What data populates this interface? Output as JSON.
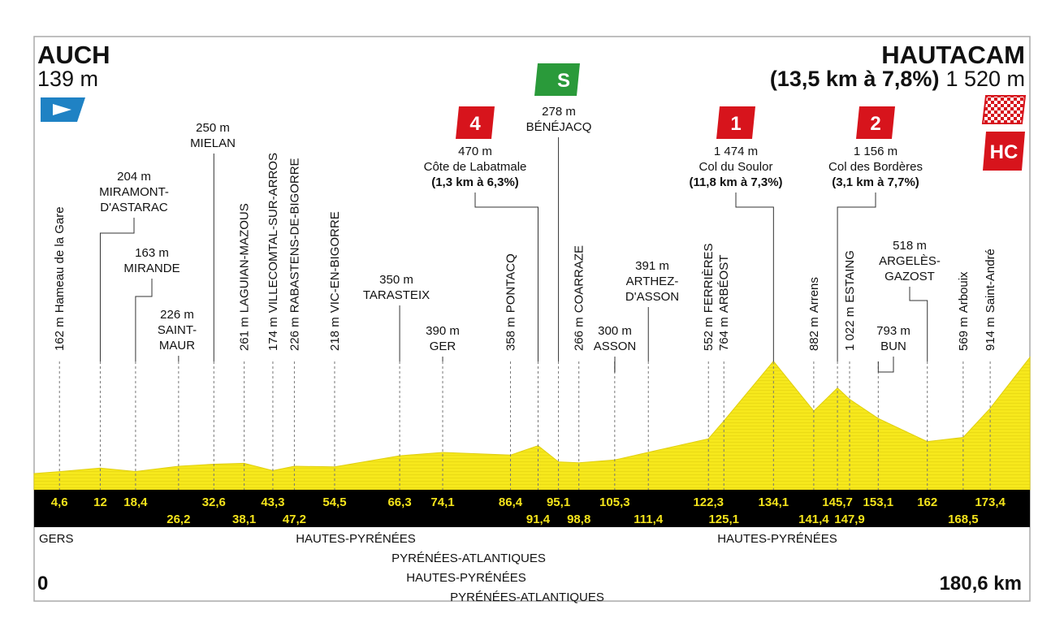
{
  "start": {
    "name": "AUCH",
    "altitude": {
      "value": 139,
      "label": "139 m"
    },
    "km": 0
  },
  "finish": {
    "name": "HAUTACAM",
    "climb": "(13,5 km à 7,8%)",
    "altitude": {
      "value": 1520,
      "label": "1 520 m"
    },
    "km": {
      "value": 180.6,
      "label": "180,6 km"
    },
    "category": "HC"
  },
  "points": [
    {
      "km": {
        "value": 4.6,
        "label": "4,6"
      },
      "altitude": {
        "value": 162,
        "label": "162 m"
      },
      "name": [
        "Hameau de la Gare"
      ]
    },
    {
      "km": {
        "value": 12,
        "label": "12"
      },
      "altitude": {
        "value": 204,
        "label": "204 m"
      },
      "name": [
        "MIRAMONT-",
        "D'ASTARAC"
      ]
    },
    {
      "km": {
        "value": 18.4,
        "label": "18,4"
      },
      "altitude": {
        "value": 163,
        "label": "163 m"
      },
      "name": [
        "MIRANDE"
      ]
    },
    {
      "km": {
        "value": 26.2,
        "label": "26,2"
      },
      "altitude": {
        "value": 226,
        "label": "226 m"
      },
      "name": [
        "SAINT-",
        "MAUR"
      ]
    },
    {
      "km": {
        "value": 32.6,
        "label": "32,6"
      },
      "altitude": {
        "value": 250,
        "label": "250 m"
      },
      "name": [
        "MIELAN"
      ]
    },
    {
      "km": {
        "value": 38.1,
        "label": "38,1"
      },
      "altitude": {
        "value": 261,
        "label": "261 m"
      },
      "name": [
        "LAGUIAN-MAZOUS"
      ]
    },
    {
      "km": {
        "value": 43.3,
        "label": "43,3"
      },
      "altitude": {
        "value": 174,
        "label": "174 m"
      },
      "name": [
        "VILLECOMTAL-SUR-ARROS"
      ]
    },
    {
      "km": {
        "value": 47.2,
        "label": "47,2"
      },
      "altitude": {
        "value": 226,
        "label": "226 m"
      },
      "name": [
        "RABASTENS-DE-BIGORRE"
      ]
    },
    {
      "km": {
        "value": 54.5,
        "label": "54,5"
      },
      "altitude": {
        "value": 218,
        "label": "218 m"
      },
      "name": [
        "VIC-EN-BIGORRE"
      ]
    },
    {
      "km": {
        "value": 66.3,
        "label": "66,3"
      },
      "altitude": {
        "value": 350,
        "label": "350 m"
      },
      "name": [
        "TARASTEIX"
      ]
    },
    {
      "km": {
        "value": 74.1,
        "label": "74,1"
      },
      "altitude": {
        "value": 390,
        "label": "390 m"
      },
      "name": [
        "GER"
      ]
    },
    {
      "km": {
        "value": 86.4,
        "label": "86,4"
      },
      "altitude": {
        "value": 358,
        "label": "358 m"
      },
      "name": [
        "PONTACQ"
      ]
    },
    {
      "km": {
        "value": 91.4,
        "label": "91,4"
      },
      "altitude": {
        "value": 470,
        "label": "470 m"
      },
      "name": [
        "Côte de Labatmale"
      ],
      "climb": "(1,3 km à 6,3%)",
      "category": "4"
    },
    {
      "km": {
        "value": 95.1,
        "label": "95,1"
      },
      "altitude": {
        "value": 278,
        "label": "278 m"
      },
      "name": [
        "BÉNÉJACQ"
      ],
      "sprint": "S"
    },
    {
      "km": {
        "value": 98.8,
        "label": "98,8"
      },
      "altitude": {
        "value": 266,
        "label": "266 m"
      },
      "name": [
        "COARRAZE"
      ]
    },
    {
      "km": {
        "value": 105.3,
        "label": "105,3"
      },
      "altitude": {
        "value": 300,
        "label": "300 m"
      },
      "name": [
        "ASSON"
      ]
    },
    {
      "km": {
        "value": 111.4,
        "label": "111,4"
      },
      "altitude": {
        "value": 391,
        "label": "391 m"
      },
      "name": [
        "ARTHEZ-",
        "D'ASSON"
      ]
    },
    {
      "km": {
        "value": 122.3,
        "label": "122,3"
      },
      "altitude": {
        "value": 552,
        "label": "552 m"
      },
      "name": [
        "FERRIÈRES"
      ]
    },
    {
      "km": {
        "value": 125.1,
        "label": "125,1"
      },
      "altitude": {
        "value": 764,
        "label": "764 m"
      },
      "name": [
        "ARBÉOST"
      ]
    },
    {
      "km": {
        "value": 134.1,
        "label": "134,1"
      },
      "altitude": {
        "value": 1474,
        "label": "1 474 m"
      },
      "name": [
        "Col du Soulor"
      ],
      "climb": "(11,8 km à 7,3%)",
      "category": "1"
    },
    {
      "km": {
        "value": 141.4,
        "label": "141,4"
      },
      "altitude": {
        "value": 882,
        "label": "882 m"
      },
      "name": [
        "Arrens"
      ]
    },
    {
      "km": {
        "value": 145.7,
        "label": "145,7"
      },
      "altitude": {
        "value": 1156,
        "label": "1 156 m"
      },
      "name": [
        "Col des Bordères"
      ],
      "climb": "(3,1 km à 7,7%)",
      "category": "2"
    },
    {
      "km": {
        "value": 147.9,
        "label": "147,9"
      },
      "altitude": {
        "value": 1022,
        "label": "1 022 m"
      },
      "name": [
        "ESTAING"
      ]
    },
    {
      "km": {
        "value": 153.1,
        "label": "153,1"
      },
      "altitude": {
        "value": 793,
        "label": "793 m"
      },
      "name": [
        "BUN"
      ]
    },
    {
      "km": {
        "value": 162,
        "label": "162"
      },
      "altitude": {
        "value": 518,
        "label": "518 m"
      },
      "name": [
        "ARGELÈS-",
        "GAZOST"
      ]
    },
    {
      "km": {
        "value": 168.5,
        "label": "168,5"
      },
      "altitude": {
        "value": 569,
        "label": "569 m"
      },
      "name": [
        "Arbouix"
      ]
    },
    {
      "km": {
        "value": 173.4,
        "label": "173,4"
      },
      "altitude": {
        "value": 914,
        "label": "914 m"
      },
      "name": [
        "Saint-André"
      ]
    }
  ],
  "departments": [
    "GERS",
    "HAUTES-PYRÉNÉES",
    "PYRÉNÉES-ATLANTIQUES",
    "HAUTES-PYRÉNÉES",
    "PYRÉNÉES-ATLANTIQUES",
    "HAUTES-PYRÉNÉES"
  ]
}
